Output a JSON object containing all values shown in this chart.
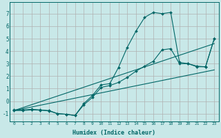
{
  "bg_color": "#c8e8e8",
  "grid_color": "#b0b0b0",
  "line_color": "#006666",
  "marker_color": "#006666",
  "xlabel": "Humidex (Indice chaleur)",
  "xlim": [
    -0.5,
    23.5
  ],
  "ylim": [
    -1.6,
    7.9
  ],
  "yticks": [
    -1,
    0,
    1,
    2,
    3,
    4,
    5,
    6,
    7
  ],
  "xticks": [
    0,
    1,
    2,
    3,
    4,
    5,
    6,
    7,
    8,
    9,
    10,
    11,
    12,
    13,
    14,
    15,
    16,
    17,
    18,
    19,
    20,
    21,
    22,
    23
  ],
  "lines": [
    {
      "x": [
        0,
        1,
        2,
        3,
        4,
        5,
        6,
        7,
        8,
        9,
        10,
        11,
        12,
        13,
        14,
        15,
        16,
        17,
        18,
        19,
        20,
        21,
        22,
        23
      ],
      "y": [
        -0.7,
        -0.7,
        -0.65,
        -0.7,
        -0.75,
        -1.0,
        -1.05,
        -1.15,
        -0.2,
        0.45,
        1.3,
        1.4,
        2.7,
        4.3,
        5.6,
        6.7,
        7.1,
        7.0,
        7.1,
        3.1,
        3.0,
        2.8,
        2.75,
        5.0
      ],
      "has_marker": true
    },
    {
      "x": [
        0,
        1,
        2,
        3,
        4,
        5,
        6,
        7,
        8,
        9,
        10,
        11,
        12,
        13,
        14,
        15,
        16,
        17,
        18,
        19,
        20,
        21,
        22,
        23
      ],
      "y": [
        -0.75,
        -0.75,
        -0.7,
        -0.72,
        -0.78,
        -1.0,
        -1.05,
        -1.15,
        -0.3,
        0.3,
        1.1,
        1.25,
        1.5,
        1.9,
        2.4,
        2.8,
        3.2,
        4.1,
        4.2,
        3.0,
        3.0,
        2.75,
        2.75,
        5.0
      ],
      "has_marker": true
    },
    {
      "x": [
        0,
        23
      ],
      "y": [
        -0.75,
        4.6
      ],
      "has_marker": false
    },
    {
      "x": [
        0,
        23
      ],
      "y": [
        -0.75,
        2.5
      ],
      "has_marker": false
    }
  ]
}
